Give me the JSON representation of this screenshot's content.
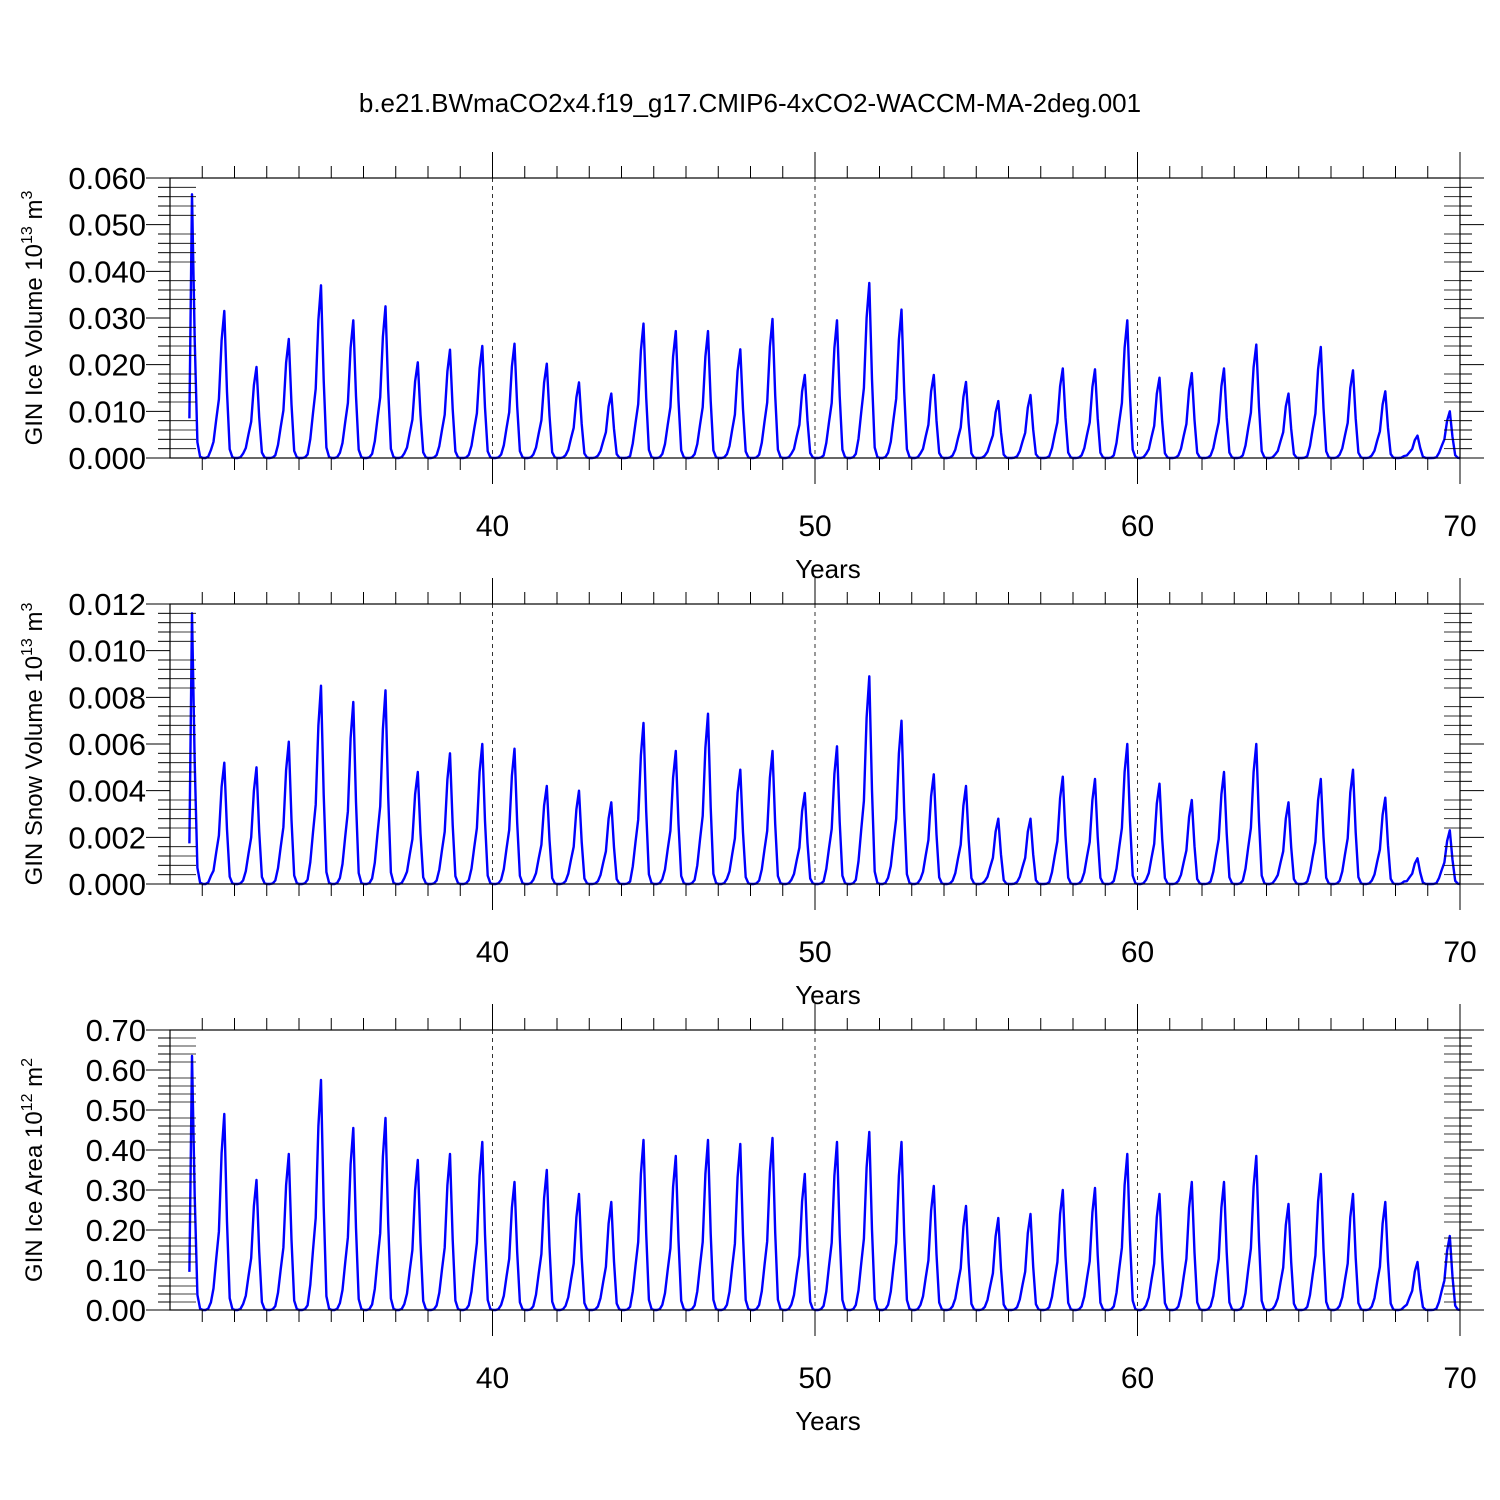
{
  "figure": {
    "title": "b.e21.BWmaCO2x4.f19_g17.CMIP6-4xCO2-WACCM-MA-2deg.001"
  },
  "chart_data": [
    {
      "type": "line",
      "id": "ice-volume",
      "ylabel": {
        "main": "GIN Ice Volume 10",
        "sup": "13",
        "unit": " m",
        "unit_sup": "3"
      },
      "xlabel": "Years",
      "xlim": [
        30.0,
        70.0
      ],
      "ylim": [
        0.0,
        0.06
      ],
      "x_ticks": [
        40,
        50,
        60,
        70
      ],
      "y_ticks": [
        0.0,
        0.01,
        0.02,
        0.03,
        0.04,
        0.05,
        0.06
      ],
      "y_tick_labels": [
        "0.000",
        "0.010",
        "0.020",
        "0.030",
        "0.040",
        "0.050",
        "0.060"
      ],
      "series_color": "#0000ff",
      "peak_years": [
        31,
        32,
        33,
        34,
        35,
        36,
        37,
        38,
        39,
        40,
        41,
        42,
        43,
        44,
        45,
        46,
        47,
        48,
        49,
        50,
        51,
        52,
        53,
        54,
        55,
        56,
        57,
        58,
        59,
        60,
        61,
        62,
        63,
        64,
        65,
        66,
        67,
        68,
        69,
        70
      ],
      "annual_peaks": [
        0.0565,
        0.0315,
        0.0195,
        0.0255,
        0.037,
        0.0295,
        0.0325,
        0.0205,
        0.0232,
        0.024,
        0.0245,
        0.0202,
        0.0162,
        0.0138,
        0.0288,
        0.0272,
        0.0272,
        0.0233,
        0.0298,
        0.0178,
        0.0295,
        0.0375,
        0.0318,
        0.0178,
        0.0163,
        0.0122,
        0.0135,
        0.0192,
        0.019,
        0.0295,
        0.0172,
        0.0182,
        0.0192,
        0.0243,
        0.0138,
        0.0238,
        0.0188,
        0.0143,
        0.0048,
        0.01
      ]
    },
    {
      "type": "line",
      "id": "snow-volume",
      "ylabel": {
        "main": "GIN Snow Volume 10",
        "sup": "13",
        "unit": " m",
        "unit_sup": "3"
      },
      "xlabel": "Years",
      "xlim": [
        30.0,
        70.0
      ],
      "ylim": [
        0.0,
        0.012
      ],
      "x_ticks": [
        40,
        50,
        60,
        70
      ],
      "y_ticks": [
        0.0,
        0.002,
        0.004,
        0.006,
        0.008,
        0.01,
        0.012
      ],
      "y_tick_labels": [
        "0.000",
        "0.002",
        "0.004",
        "0.006",
        "0.008",
        "0.010",
        "0.012"
      ],
      "series_color": "#0000ff",
      "peak_years": [
        31,
        32,
        33,
        34,
        35,
        36,
        37,
        38,
        39,
        40,
        41,
        42,
        43,
        44,
        45,
        46,
        47,
        48,
        49,
        50,
        51,
        52,
        53,
        54,
        55,
        56,
        57,
        58,
        59,
        60,
        61,
        62,
        63,
        64,
        65,
        66,
        67,
        68,
        69,
        70
      ],
      "annual_peaks": [
        0.0116,
        0.0052,
        0.005,
        0.0061,
        0.0085,
        0.0078,
        0.0083,
        0.0048,
        0.0056,
        0.006,
        0.0058,
        0.0042,
        0.004,
        0.0035,
        0.0069,
        0.0057,
        0.0073,
        0.0049,
        0.0057,
        0.0039,
        0.0059,
        0.0089,
        0.007,
        0.0047,
        0.0042,
        0.0028,
        0.0028,
        0.0046,
        0.0045,
        0.006,
        0.0043,
        0.0036,
        0.0048,
        0.006,
        0.0035,
        0.0045,
        0.0049,
        0.0037,
        0.0011,
        0.0023
      ]
    },
    {
      "type": "line",
      "id": "ice-area",
      "ylabel": {
        "main": "GIN Ice Area 10",
        "sup": "12",
        "unit": " m",
        "unit_sup": "2"
      },
      "xlabel": "Years",
      "xlim": [
        30.0,
        70.0
      ],
      "ylim": [
        0.0,
        0.7
      ],
      "x_ticks": [
        40,
        50,
        60,
        70
      ],
      "y_ticks": [
        0.0,
        0.1,
        0.2,
        0.3,
        0.4,
        0.5,
        0.6,
        0.7
      ],
      "y_tick_labels": [
        "0.00",
        "0.10",
        "0.20",
        "0.30",
        "0.40",
        "0.50",
        "0.60",
        "0.70"
      ],
      "series_color": "#0000ff",
      "peak_years": [
        31,
        32,
        33,
        34,
        35,
        36,
        37,
        38,
        39,
        40,
        41,
        42,
        43,
        44,
        45,
        46,
        47,
        48,
        49,
        50,
        51,
        52,
        53,
        54,
        55,
        56,
        57,
        58,
        59,
        60,
        61,
        62,
        63,
        64,
        65,
        66,
        67,
        68,
        69,
        70
      ],
      "annual_peaks": [
        0.635,
        0.49,
        0.325,
        0.39,
        0.575,
        0.455,
        0.48,
        0.375,
        0.39,
        0.42,
        0.32,
        0.35,
        0.29,
        0.27,
        0.425,
        0.385,
        0.425,
        0.415,
        0.43,
        0.34,
        0.42,
        0.445,
        0.42,
        0.31,
        0.26,
        0.23,
        0.24,
        0.3,
        0.305,
        0.39,
        0.29,
        0.32,
        0.32,
        0.385,
        0.265,
        0.34,
        0.29,
        0.27,
        0.12,
        0.185
      ]
    }
  ]
}
